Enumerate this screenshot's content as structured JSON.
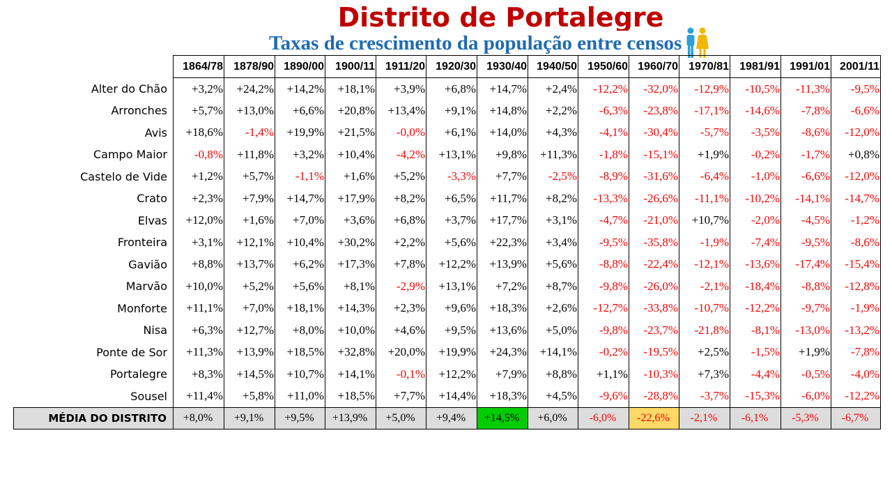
{
  "title": "Distrito de Portalegre",
  "subtitle": "Taxas de crescimento da população entre censos",
  "icon": "people-icon",
  "colors": {
    "title": "#c00000",
    "subtitle": "#1f6bb0",
    "negative": "#ff0000",
    "highlight_max": "#00cc00",
    "highlight_min": "#ffd966",
    "average_row": "#dddddd"
  },
  "table": {
    "columns": [
      "1864/78",
      "1878/90",
      "1890/00",
      "1900/11",
      "1911/20",
      "1920/30",
      "1930/40",
      "1940/50",
      "1950/60",
      "1960/70",
      "1970/81",
      "1981/91",
      "1991/01",
      "2001/11"
    ],
    "rows": [
      {
        "name": "Alter do Chão",
        "values": [
          "+3,2%",
          "+24,2%",
          "+14,2%",
          "+18,1%",
          "+3,9%",
          "+6,8%",
          "+14,7%",
          "+2,4%",
          "-12,2%",
          "-32,0%",
          "-12,9%",
          "-10,5%",
          "-11,3%",
          "-9,5%"
        ]
      },
      {
        "name": "Arronches",
        "values": [
          "+5,7%",
          "+13,0%",
          "+6,6%",
          "+20,8%",
          "+13,4%",
          "+9,1%",
          "+14,8%",
          "+2,2%",
          "-6,3%",
          "-23,8%",
          "-17,1%",
          "-14,6%",
          "-7,8%",
          "-6,6%"
        ]
      },
      {
        "name": "Avis",
        "values": [
          "+18,6%",
          "-1,4%",
          "+19,9%",
          "+21,5%",
          "-0,0%",
          "+6,1%",
          "+14,0%",
          "+4,3%",
          "-4,1%",
          "-30,4%",
          "-5,7%",
          "-3,5%",
          "-8,6%",
          "-12,0%"
        ]
      },
      {
        "name": "Campo Maior",
        "values": [
          "-0,8%",
          "+11,8%",
          "+3,2%",
          "+10,4%",
          "-4,2%",
          "+13,1%",
          "+9,8%",
          "+11,3%",
          "-1,8%",
          "-15,1%",
          "+1,9%",
          "-0,2%",
          "-1,7%",
          "+0,8%"
        ]
      },
      {
        "name": "Castelo de Vide",
        "values": [
          "+1,2%",
          "+5,7%",
          "-1,1%",
          "+1,6%",
          "+5,2%",
          "-3,3%",
          "+7,7%",
          "-2,5%",
          "-8,9%",
          "-31,6%",
          "-6,4%",
          "-1,0%",
          "-6,6%",
          "-12,0%"
        ]
      },
      {
        "name": "Crato",
        "values": [
          "+2,3%",
          "+7,9%",
          "+14,7%",
          "+17,9%",
          "+8,2%",
          "+6,5%",
          "+11,7%",
          "+8,2%",
          "-13,3%",
          "-26,6%",
          "-11,1%",
          "-10,2%",
          "-14,1%",
          "-14,7%"
        ]
      },
      {
        "name": "Elvas",
        "values": [
          "+12,0%",
          "+1,6%",
          "+7,0%",
          "+3,6%",
          "+6,8%",
          "+3,7%",
          "+17,7%",
          "+3,1%",
          "-4,7%",
          "-21,0%",
          "+10,7%",
          "-2,0%",
          "-4,5%",
          "-1,2%"
        ]
      },
      {
        "name": "Fronteira",
        "values": [
          "+3,1%",
          "+12,1%",
          "+10,4%",
          "+30,2%",
          "+2,2%",
          "+5,6%",
          "+22,3%",
          "+3,4%",
          "-9,5%",
          "-35,8%",
          "-1,9%",
          "-7,4%",
          "-9,5%",
          "-8,6%"
        ]
      },
      {
        "name": "Gavião",
        "values": [
          "+8,8%",
          "+13,7%",
          "+6,2%",
          "+17,3%",
          "+7,8%",
          "+12,2%",
          "+13,9%",
          "+5,6%",
          "-8,8%",
          "-22,4%",
          "-12,1%",
          "-13,6%",
          "-17,4%",
          "-15,4%"
        ]
      },
      {
        "name": "Marvão",
        "values": [
          "+10,0%",
          "+5,2%",
          "+5,6%",
          "+8,1%",
          "-2,9%",
          "+13,1%",
          "+7,2%",
          "+8,7%",
          "-9,8%",
          "-26,0%",
          "-2,1%",
          "-18,4%",
          "-8,8%",
          "-12,8%"
        ]
      },
      {
        "name": "Monforte",
        "values": [
          "+11,1%",
          "+7,0%",
          "+18,1%",
          "+14,3%",
          "+2,3%",
          "+9,6%",
          "+18,3%",
          "+2,6%",
          "-12,7%",
          "-33,8%",
          "-10,7%",
          "-12,2%",
          "-9,7%",
          "-1,9%"
        ]
      },
      {
        "name": "Nisa",
        "values": [
          "+6,3%",
          "+12,7%",
          "+8,0%",
          "+10,0%",
          "+4,6%",
          "+9,5%",
          "+13,6%",
          "+5,0%",
          "-9,8%",
          "-23,7%",
          "-21,8%",
          "-8,1%",
          "-13,0%",
          "-13,2%"
        ]
      },
      {
        "name": "Ponte de Sor",
        "values": [
          "+11,3%",
          "+13,9%",
          "+18,5%",
          "+32,8%",
          "+20,0%",
          "+19,9%",
          "+24,3%",
          "+14,1%",
          "-0,2%",
          "-19,5%",
          "+2,5%",
          "-1,5%",
          "+1,9%",
          "-7,8%"
        ]
      },
      {
        "name": "Portalegre",
        "values": [
          "+8,3%",
          "+14,5%",
          "+10,7%",
          "+14,1%",
          "-0,1%",
          "+12,2%",
          "+7,9%",
          "+8,8%",
          "+1,1%",
          "-10,3%",
          "+7,3%",
          "-4,4%",
          "-0,5%",
          "-4,0%"
        ]
      },
      {
        "name": "Sousel",
        "values": [
          "+11,4%",
          "+5,8%",
          "+11,0%",
          "+18,5%",
          "+7,7%",
          "+14,4%",
          "+18,3%",
          "+4,5%",
          "-9,6%",
          "-28,8%",
          "-3,7%",
          "-15,3%",
          "-6,0%",
          "-12,2%"
        ]
      }
    ],
    "average": {
      "label": "MÉDIA DO DISTRITO",
      "values": [
        "+8,0%",
        "+9,1%",
        "+9,5%",
        "+13,9%",
        "+5,0%",
        "+9,4%",
        "+14,5%",
        "+6,0%",
        "-6,0%",
        "-22,6%",
        "-2,1%",
        "-6,1%",
        "-5,3%",
        "-6,7%"
      ],
      "max_index": 6,
      "min_index": 9
    }
  }
}
